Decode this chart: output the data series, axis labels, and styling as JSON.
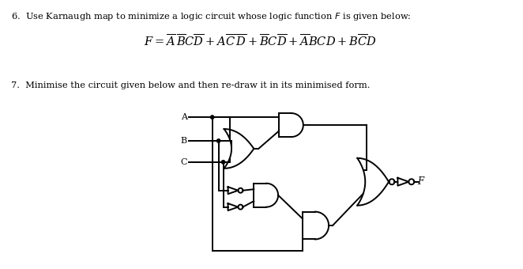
{
  "bg_color": "#ffffff",
  "text_color": "#000000",
  "line_color": "#000000",
  "lw": 1.4,
  "text6": "6.  Use Karnaugh map to minimize a logic circuit whose logic function $F$ is given below:",
  "text7": "7.  Minimise the circuit given below and then re-draw it in its minimised form.",
  "label_A": "A",
  "label_B": "B",
  "label_C": "C",
  "label_F": "F"
}
